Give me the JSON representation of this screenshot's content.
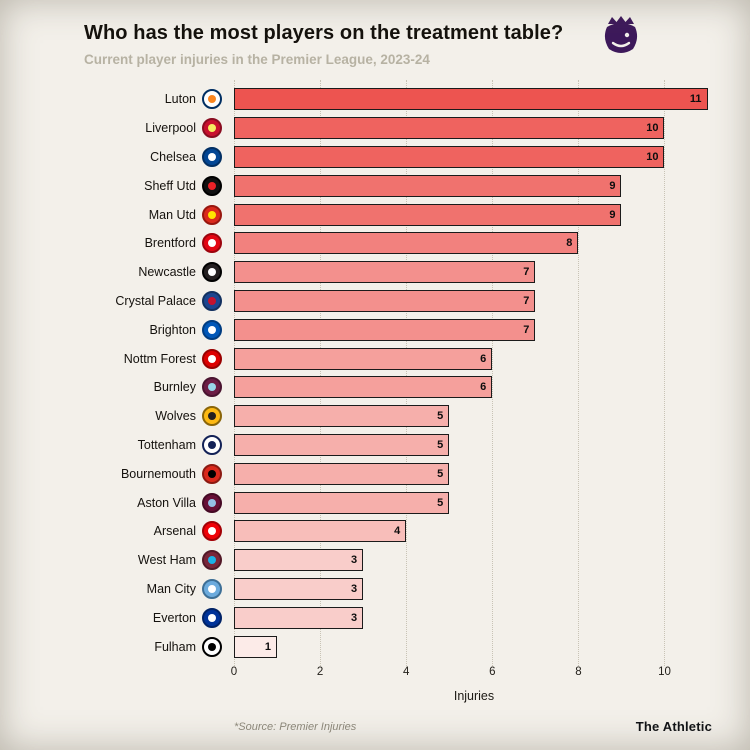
{
  "header": {
    "title": "Who has the most players on the treatment table?",
    "subtitle": "Current player injuries in the Premier League, 2023-24",
    "logo": "premier-league-lion"
  },
  "chart_data": {
    "type": "bar",
    "orientation": "horizontal",
    "title": "Who has the most players on the treatment table?",
    "subtitle": "Current player injuries in the Premier League, 2023-24",
    "xlabel": "Injuries",
    "xticks": [
      0,
      2,
      4,
      6,
      8,
      10
    ],
    "xlim": [
      0,
      11.15
    ],
    "grid": "dotted-vertical",
    "bar_border_color": "#1b1b1b",
    "color_scale": {
      "low_value": 1,
      "high_value": 11,
      "low_color": "#fcebe8",
      "high_color": "#ed5450"
    },
    "categories": [
      "Luton",
      "Liverpool",
      "Chelsea",
      "Sheff Utd",
      "Man Utd",
      "Brentford",
      "Newcastle",
      "Crystal Palace",
      "Brighton",
      "Nottm Forest",
      "Burnley",
      "Wolves",
      "Tottenham",
      "Bournemouth",
      "Aston Villa",
      "Arsenal",
      "West Ham",
      "Man City",
      "Everton",
      "Fulham"
    ],
    "values": [
      11,
      10,
      10,
      9,
      9,
      8,
      7,
      7,
      7,
      6,
      6,
      5,
      5,
      5,
      5,
      4,
      3,
      3,
      3,
      1
    ],
    "badges": [
      {
        "club": "Luton",
        "bg": "#ffffff",
        "ring": "#002e62",
        "dot": "#fb861f"
      },
      {
        "club": "Liverpool",
        "bg": "#c8102e",
        "ring": "#8a0c20",
        "dot": "#f6eb61"
      },
      {
        "club": "Chelsea",
        "bg": "#034694",
        "ring": "#022f63",
        "dot": "#ffffff"
      },
      {
        "club": "Sheff Utd",
        "bg": "#111111",
        "ring": "#000000",
        "dot": "#ec2227"
      },
      {
        "club": "Man Utd",
        "bg": "#da291c",
        "ring": "#98160e",
        "dot": "#ffe500"
      },
      {
        "club": "Brentford",
        "bg": "#e30613",
        "ring": "#9c040d",
        "dot": "#ffffff"
      },
      {
        "club": "Newcastle",
        "bg": "#241f20",
        "ring": "#000000",
        "dot": "#ffffff"
      },
      {
        "club": "Crystal Palace",
        "bg": "#1b458f",
        "ring": "#12305f",
        "dot": "#c4122e"
      },
      {
        "club": "Brighton",
        "bg": "#0057b8",
        "ring": "#003c80",
        "dot": "#ffffff"
      },
      {
        "club": "Nottm Forest",
        "bg": "#dd0000",
        "ring": "#990000",
        "dot": "#ffffff"
      },
      {
        "club": "Burnley",
        "bg": "#6c1d45",
        "ring": "#4a1430",
        "dot": "#99d6ea"
      },
      {
        "club": "Wolves",
        "bg": "#fdb913",
        "ring": "#8a6508",
        "dot": "#231f20"
      },
      {
        "club": "Tottenham",
        "bg": "#ffffff",
        "ring": "#132257",
        "dot": "#132257"
      },
      {
        "club": "Bournemouth",
        "bg": "#da291c",
        "ring": "#8c1a12",
        "dot": "#000000"
      },
      {
        "club": "Aston Villa",
        "bg": "#670e36",
        "ring": "#450924",
        "dot": "#95bfe5"
      },
      {
        "club": "Arsenal",
        "bg": "#ef0107",
        "ring": "#a30005",
        "dot": "#ffffff"
      },
      {
        "club": "West Ham",
        "bg": "#7a263a",
        "ring": "#521927",
        "dot": "#1bb1e7"
      },
      {
        "club": "Man City",
        "bg": "#6cabdd",
        "ring": "#3d6f96",
        "dot": "#ffffff"
      },
      {
        "club": "Everton",
        "bg": "#003399",
        "ring": "#002266",
        "dot": "#ffffff"
      },
      {
        "club": "Fulham",
        "bg": "#ffffff",
        "ring": "#000000",
        "dot": "#000000"
      }
    ]
  },
  "footer": {
    "source": "*Source: Premier Injuries",
    "brand": "The Athletic"
  }
}
